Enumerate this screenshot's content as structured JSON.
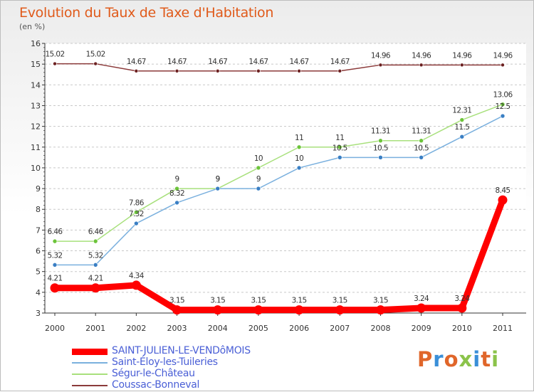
{
  "title": "Evolution du Taux de Taxe d'Habitation",
  "subtitle": "(en %)",
  "logo": {
    "text": "Proxiti",
    "letters": [
      {
        "ch": "P",
        "color": "#e0662a"
      },
      {
        "ch": "r",
        "color": "#3a8fd8"
      },
      {
        "ch": "o",
        "color": "#e0662a"
      },
      {
        "ch": "x",
        "color": "#8bc34a"
      },
      {
        "ch": "i",
        "color": "#3a8fd8"
      },
      {
        "ch": "t",
        "color": "#e0662a"
      },
      {
        "ch": "i",
        "color": "#8bc34a"
      }
    ]
  },
  "chart_data": {
    "type": "line",
    "x": [
      "2000",
      "2001",
      "2002",
      "2003",
      "2004",
      "2005",
      "2006",
      "2007",
      "2008",
      "2009",
      "2010",
      "2011"
    ],
    "ylim": [
      3,
      16
    ],
    "yticks": [
      "3",
      "4",
      "5",
      "6",
      "7",
      "8",
      "9",
      "10",
      "11",
      "12",
      "13",
      "14",
      "15",
      "16"
    ],
    "grid": "horizontal dashed",
    "legend_position": "bottom-left",
    "series": [
      {
        "name": "SAINT-JULIEN-LE-VENDôMOIS",
        "color": "#ff0000",
        "marker_color": "#ff0000",
        "line_width": 9,
        "marker_size": 6.5,
        "values": [
          4.21,
          4.21,
          4.34,
          3.15,
          3.15,
          3.15,
          3.15,
          3.15,
          3.15,
          3.24,
          3.24,
          8.45
        ],
        "labels": [
          "4.21",
          "4.21",
          "4.34",
          "3.15",
          "3.15",
          "3.15",
          "3.15",
          "3.15",
          "3.15",
          "3.24",
          "3.24",
          "8.45"
        ]
      },
      {
        "name": "Saint-Éloy-les-Tuileries",
        "color": "#7ab0de",
        "marker_color": "#3a7fc4",
        "line_width": 1.5,
        "marker_size": 3,
        "values": [
          5.32,
          5.32,
          7.32,
          8.32,
          9,
          9,
          10,
          10.5,
          10.5,
          10.5,
          11.5,
          12.5
        ],
        "labels": [
          "5.32",
          "5.32",
          "7.32",
          "8.32",
          "9",
          "9",
          "10",
          "10.5",
          "10.5",
          "10.5",
          "11.5",
          "12.5"
        ]
      },
      {
        "name": "Ségur-le-Château",
        "color": "#a8e07c",
        "marker_color": "#6cc43a",
        "line_width": 1.5,
        "marker_size": 3,
        "values": [
          6.46,
          6.46,
          7.86,
          9,
          9,
          10,
          11,
          11,
          11.31,
          11.31,
          12.31,
          13.06
        ],
        "labels": [
          "6.46",
          "6.46",
          "7.86",
          "9",
          "9",
          "10",
          "11",
          "11",
          "11.31",
          "11.31",
          "12.31",
          "13.06"
        ]
      },
      {
        "name": "Coussac-Bonneval",
        "color": "#8b3a3a",
        "marker_color": "#6b2020",
        "line_width": 1.5,
        "marker_size": 2.5,
        "values": [
          15.02,
          15.02,
          14.67,
          14.67,
          14.67,
          14.67,
          14.67,
          14.67,
          14.96,
          14.96,
          14.96,
          14.96
        ],
        "labels": [
          "15.02",
          "15.02",
          "14.67",
          "14.67",
          "14.67",
          "14.67",
          "14.67",
          "14.67",
          "14.96",
          "14.96",
          "14.96",
          "14.96"
        ]
      }
    ]
  }
}
